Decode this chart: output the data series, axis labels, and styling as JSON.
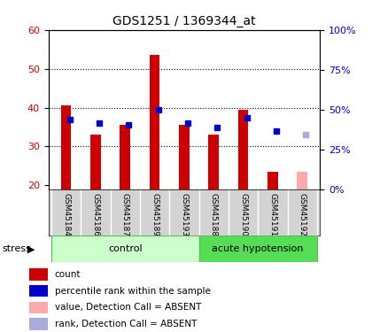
{
  "title": "GDS1251 / 1369344_at",
  "samples": [
    "GSM45184",
    "GSM45186",
    "GSM45187",
    "GSM45189",
    "GSM45193",
    "GSM45188",
    "GSM45190",
    "GSM45191",
    "GSM45192"
  ],
  "red_values": [
    40.5,
    33.0,
    35.5,
    53.5,
    35.5,
    33.0,
    39.5,
    23.5,
    null
  ],
  "blue_values": [
    37.0,
    36.0,
    35.5,
    39.5,
    36.0,
    35.0,
    37.5,
    34.0,
    null
  ],
  "absent_red": [
    null,
    null,
    null,
    null,
    null,
    null,
    null,
    null,
    23.5
  ],
  "absent_blue": [
    null,
    null,
    null,
    null,
    null,
    null,
    null,
    null,
    33.0
  ],
  "ylim_left": [
    19,
    60
  ],
  "ylim_right": [
    0,
    100
  ],
  "yticks_left": [
    20,
    30,
    40,
    50,
    60
  ],
  "yticks_right": [
    0,
    25,
    50,
    75,
    100
  ],
  "ytick_right_labels": [
    "0%",
    "25%",
    "50%",
    "75%",
    "100%"
  ],
  "grid_lines": [
    30,
    40,
    50
  ],
  "legend_items": [
    {
      "label": "count",
      "color": "#cc0000",
      "alpha": 1.0
    },
    {
      "label": "percentile rank within the sample",
      "color": "#0000cc",
      "alpha": 1.0
    },
    {
      "label": "value, Detection Call = ABSENT",
      "color": "#ffaaaa",
      "alpha": 1.0
    },
    {
      "label": "rank, Detection Call = ABSENT",
      "color": "#aaaadd",
      "alpha": 1.0
    }
  ]
}
